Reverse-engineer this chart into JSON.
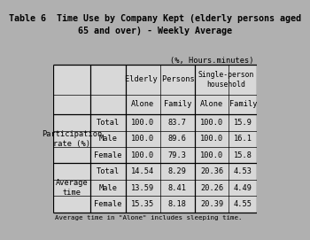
{
  "title": "Table 6  Time Use by Company Kept (elderly persons aged\n65 and over) - Weekly Average",
  "subtitle": "(%, Hours.minutes)",
  "col_headers_level1": [
    "Elderly Persons",
    "Single-person\nhousehold"
  ],
  "col_headers_level2": [
    "Alone",
    "Family",
    "Alone",
    "Family"
  ],
  "row_groups": [
    {
      "group_label": "Participation\nrate (%)",
      "rows": [
        {
          "sub_label": "Total",
          "values": [
            "100.0",
            "83.7",
            "100.0",
            "15.9"
          ]
        },
        {
          "sub_label": "Male",
          "values": [
            "100.0",
            "89.6",
            "100.0",
            "16.1"
          ]
        },
        {
          "sub_label": "Female",
          "values": [
            "100.0",
            "79.3",
            "100.0",
            "15.8"
          ]
        }
      ]
    },
    {
      "group_label": "Average\ntime",
      "rows": [
        {
          "sub_label": "Total",
          "values": [
            "14.54",
            "8.29",
            "20.36",
            "4.53"
          ]
        },
        {
          "sub_label": "Male",
          "values": [
            "13.59",
            "8.41",
            "20.26",
            "4.49"
          ]
        },
        {
          "sub_label": "Female",
          "values": [
            "15.35",
            "8.18",
            "20.39",
            "4.55"
          ]
        }
      ]
    }
  ],
  "footnote": "Average time in \"Alone\" includes sleeping time.",
  "bg_color": "#b0b0b0",
  "cell_bg": "#d8d8d8",
  "header_bg": "#c8c8c8",
  "border_color": "#000000",
  "font_size": 6.2,
  "title_font_size": 7.2
}
